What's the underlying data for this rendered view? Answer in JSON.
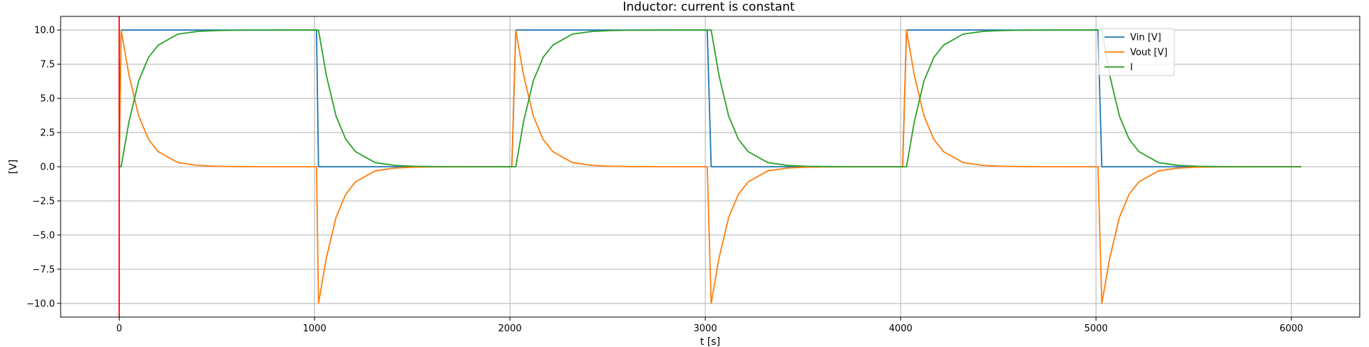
{
  "chart_data": {
    "type": "line",
    "title": "Inductor: current is constant",
    "xlabel": "t [s]",
    "ylabel": "[V]",
    "xlim": [
      -300,
      6350
    ],
    "ylim": [
      -11,
      11
    ],
    "xticks": [
      0,
      1000,
      2000,
      3000,
      4000,
      5000,
      6000
    ],
    "xtick_labels": [
      "0",
      "1000",
      "2000",
      "3000",
      "4000",
      "5000",
      "6000"
    ],
    "yticks": [
      -10.0,
      -7.5,
      -5.0,
      -2.5,
      0.0,
      2.5,
      5.0,
      7.5,
      10.0
    ],
    "ytick_labels": [
      "−10.0",
      "−7.5",
      "−5.0",
      "−2.5",
      "0.0",
      "2.5",
      "5.0",
      "7.5",
      "10.0"
    ],
    "grid": true,
    "legend_position": "upper right",
    "series": [
      {
        "name": "Vin [V]",
        "color": "#1f77b4",
        "x": [
          0,
          10,
          1010,
          1020,
          2010,
          2030,
          3010,
          3030,
          4010,
          4030,
          5010,
          5030,
          6050
        ],
        "y": [
          0,
          10,
          10,
          0,
          0,
          10,
          10,
          0,
          0,
          10,
          10,
          0,
          0
        ]
      },
      {
        "name": "Vout [V]",
        "color": "#ff7f0e",
        "x": [
          0,
          10,
          50,
          100,
          150,
          200,
          300,
          400,
          500,
          600,
          800,
          1010,
          1020,
          1060,
          1110,
          1160,
          1210,
          1310,
          1410,
          1510,
          1610,
          1810,
          2010,
          2030,
          2070,
          2120,
          2170,
          2220,
          2320,
          2420,
          2520,
          2620,
          2820,
          3010,
          3030,
          3070,
          3120,
          3170,
          3220,
          3320,
          3420,
          3520,
          3620,
          3820,
          4010,
          4030,
          4070,
          4120,
          4170,
          4220,
          4320,
          4420,
          4520,
          4620,
          4820,
          5010,
          5030,
          5070,
          5120,
          5170,
          5220,
          5320,
          5420,
          5520,
          5620,
          5820,
          6050
        ],
        "y": [
          0,
          10,
          6.7,
          3.7,
          2.0,
          1.1,
          0.3,
          0.1,
          0.03,
          0.01,
          0,
          0,
          -10,
          -6.7,
          -3.7,
          -2.0,
          -1.1,
          -0.3,
          -0.1,
          -0.03,
          -0.01,
          0,
          0,
          10,
          6.7,
          3.7,
          2.0,
          1.1,
          0.3,
          0.1,
          0.03,
          0.01,
          0,
          0,
          -10,
          -6.7,
          -3.7,
          -2.0,
          -1.1,
          -0.3,
          -0.1,
          -0.03,
          -0.01,
          0,
          0,
          10,
          6.7,
          3.7,
          2.0,
          1.1,
          0.3,
          0.1,
          0.03,
          0.01,
          0,
          0,
          -10,
          -6.7,
          -3.7,
          -2.0,
          -1.1,
          -0.3,
          -0.1,
          -0.03,
          -0.01,
          0,
          0
        ]
      },
      {
        "name": "I",
        "color": "#2ca02c",
        "x": [
          0,
          10,
          50,
          100,
          150,
          200,
          300,
          400,
          500,
          600,
          800,
          1010,
          1020,
          1060,
          1110,
          1160,
          1210,
          1310,
          1410,
          1510,
          1610,
          1810,
          2010,
          2030,
          2070,
          2120,
          2170,
          2220,
          2320,
          2420,
          2520,
          2620,
          2820,
          3010,
          3030,
          3070,
          3120,
          3170,
          3220,
          3320,
          3420,
          3520,
          3620,
          3820,
          4010,
          4030,
          4070,
          4120,
          4170,
          4220,
          4320,
          4420,
          4520,
          4620,
          4820,
          5010,
          5030,
          5070,
          5120,
          5170,
          5220,
          5320,
          5420,
          5520,
          5620,
          5820,
          6050
        ],
        "y": [
          0,
          0,
          3.3,
          6.3,
          8.0,
          8.9,
          9.7,
          9.9,
          9.97,
          9.99,
          10,
          10,
          10,
          6.7,
          3.7,
          2.0,
          1.1,
          0.3,
          0.1,
          0.03,
          0.01,
          0,
          0,
          0,
          3.3,
          6.3,
          8.0,
          8.9,
          9.7,
          9.9,
          9.97,
          9.99,
          10,
          10,
          10,
          6.7,
          3.7,
          2.0,
          1.1,
          0.3,
          0.1,
          0.03,
          0.01,
          0,
          0,
          0,
          3.3,
          6.3,
          8.0,
          8.9,
          9.7,
          9.9,
          9.97,
          9.99,
          10,
          10,
          10,
          6.7,
          3.7,
          2.0,
          1.1,
          0.3,
          0.1,
          0.03,
          0.01,
          0,
          0
        ]
      }
    ],
    "vline": {
      "x": 0,
      "color": "#ff0000"
    }
  }
}
